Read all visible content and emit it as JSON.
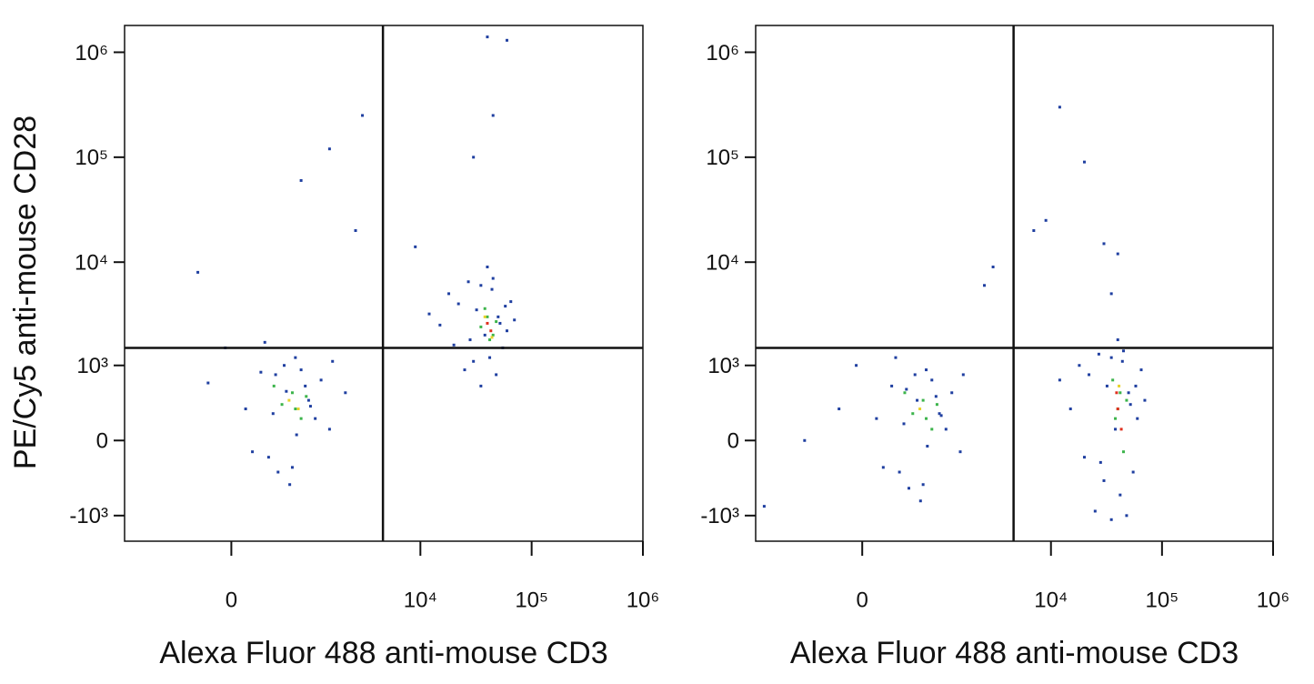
{
  "chart_data": [
    {
      "type": "scatter",
      "xscale": "biexponential",
      "yscale": "biexponential",
      "x_label": "Alexa Fluor 488 anti-mouse CD3",
      "y_label": "PE/Cy5 anti-mouse CD28",
      "xlim": [
        -1800,
        1000000
      ],
      "ylim": [
        -1800,
        1800000
      ],
      "xticks": [
        0,
        {
          "value": 10000,
          "label": "10⁴"
        },
        {
          "value": 100000,
          "label": "10⁵"
        },
        {
          "value": 1000000,
          "label": "10⁶"
        }
      ],
      "yticks": [
        {
          "value": -1000,
          "label": "-10³"
        },
        0,
        {
          "value": 1000,
          "label": "10³"
        },
        {
          "value": 10000,
          "label": "10⁴"
        },
        {
          "value": 100000,
          "label": "10⁵"
        },
        {
          "value": 1000000,
          "label": "10⁶"
        }
      ],
      "gate": {
        "x": 4600,
        "y": 1500
      },
      "series": [
        {
          "color": "#1f3fa0",
          "x": [
            120,
            340,
            560,
            800,
            1100,
            -200,
            450,
            700,
            950,
            1500,
            260,
            610,
            880,
            -50,
            390,
            1250,
            720,
            530,
            180,
            990,
            1600,
            2100,
            300,
            650,
            420,
            15000,
            22000,
            28000,
            35000,
            42000,
            50000,
            60000,
            18000,
            25000,
            32000,
            45000,
            55000,
            70000,
            12000,
            38000,
            48000,
            27000,
            65000,
            30000,
            40000,
            52000,
            20000,
            58000,
            35000,
            44000,
            -300,
            1500,
            3000,
            800,
            2600,
            40000,
            45000,
            30000,
            60000,
            9000
          ],
          "y": [
            300,
            -150,
            520,
            900,
            200,
            650,
            -300,
            1200,
            400,
            100,
            850,
            -450,
            600,
            1500,
            250,
            700,
            50,
            1000,
            -100,
            330,
            1100,
            500,
            1700,
            -250,
            800,
            2500,
            4000,
            1800,
            6000,
            1200,
            3000,
            2200,
            5000,
            900,
            3500,
            7000,
            1500,
            2800,
            3200,
            2000,
            800,
            6500,
            4200,
            1100,
            9000,
            2600,
            1600,
            3800,
            600,
            5500,
            8000,
            120000,
            250000,
            60000,
            20000,
            1400000,
            250000,
            100000,
            1300000,
            14000
          ]
        },
        {
          "color": "#3cb44b",
          "x": [
            500,
            650,
            800,
            400,
            700,
            900,
            35000,
            40000,
            45000,
            38000,
            42000,
            48000
          ],
          "y": [
            350,
            500,
            200,
            600,
            300,
            450,
            2400,
            3000,
            2000,
            3600,
            1800,
            2700
          ]
        },
        {
          "color": "#e8d22a",
          "x": [
            600,
            750,
            38000,
            44000
          ],
          "y": [
            400,
            300,
            3000,
            1900
          ]
        },
        {
          "color": "#e0301e",
          "x": [
            40000,
            43000
          ],
          "y": [
            2600,
            2200
          ]
        }
      ]
    },
    {
      "type": "scatter",
      "xscale": "biexponential",
      "yscale": "biexponential",
      "x_label": "Alexa Fluor 488 anti-mouse CD3",
      "xlim": [
        -1800,
        1000000
      ],
      "ylim": [
        -1800,
        1800000
      ],
      "xticks": [
        0,
        {
          "value": 10000,
          "label": "10⁴"
        },
        {
          "value": 100000,
          "label": "10⁵"
        },
        {
          "value": 1000000,
          "label": "10⁶"
        }
      ],
      "yticks": [
        {
          "value": -1000,
          "label": "-10³"
        },
        0,
        {
          "value": 1000,
          "label": "10³"
        },
        {
          "value": 10000,
          "label": "10⁴"
        },
        {
          "value": 100000,
          "label": "10⁵"
        },
        {
          "value": 1000000,
          "label": "10⁶"
        }
      ],
      "gate": {
        "x": 4600,
        "y": 1500
      },
      "series": [
        {
          "color": "#1f3fa0",
          "x": [
            120,
            340,
            560,
            800,
            1100,
            -200,
            450,
            700,
            950,
            1500,
            260,
            610,
            880,
            -50,
            390,
            1250,
            720,
            530,
            180,
            990,
            1600,
            -600,
            300,
            650,
            420,
            15000,
            22000,
            28000,
            35000,
            42000,
            50000,
            60000,
            18000,
            25000,
            32000,
            45000,
            55000,
            70000,
            12000,
            38000,
            48000,
            27000,
            65000,
            30000,
            40000,
            52000,
            20000,
            58000,
            35000,
            44000,
            2500,
            3000,
            7000,
            9000,
            12000,
            20000,
            30000,
            40000,
            35000,
            -1500
          ],
          "y": [
            200,
            -300,
            400,
            700,
            100,
            300,
            -500,
            900,
            250,
            -100,
            600,
            -700,
            450,
            1000,
            150,
            500,
            -50,
            800,
            -250,
            230,
            800,
            0,
            1200,
            -450,
            550,
            300,
            800,
            -200,
            1200,
            -600,
            500,
            200,
            1000,
            -900,
            600,
            1400,
            -300,
            400,
            700,
            100,
            -1000,
            1300,
            900,
            -400,
            1800,
            350,
            -150,
            600,
            -1100,
            1100,
            6000,
            9000,
            20000,
            25000,
            300000,
            90000,
            15000,
            12000,
            5000,
            -800
          ]
        },
        {
          "color": "#3cb44b",
          "x": [
            500,
            650,
            800,
            400,
            700,
            900,
            38000,
            42000,
            45000,
            36000,
            40000,
            48000
          ],
          "y": [
            250,
            400,
            100,
            500,
            200,
            350,
            200,
            500,
            -100,
            700,
            300,
            400
          ]
        },
        {
          "color": "#e8d22a",
          "x": [
            600,
            41000
          ],
          "y": [
            300,
            600
          ]
        },
        {
          "color": "#e0301e",
          "x": [
            40000,
            43000,
            39000
          ],
          "y": [
            300,
            100,
            500
          ]
        }
      ]
    }
  ]
}
